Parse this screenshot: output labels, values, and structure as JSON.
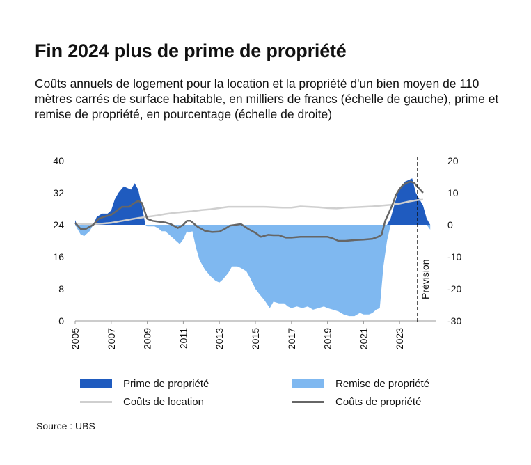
{
  "title": "Fin 2024 plus de prime de propriété",
  "subtitle": "Coûts annuels de logement pour la location et la propriété d'un bien moyen de 110 mètres carrés de surface habitable, en milliers de francs (échelle de gauche), prime et remise de propriété, en pourcentage (échelle de droite)",
  "source": "Source : UBS",
  "forecast_label": "Prévision",
  "colors": {
    "premium": "#1f5bbf",
    "discount": "#7fb8f0",
    "rent": "#cfcfcf",
    "ownership": "#666666",
    "axis": "#999999"
  },
  "legend": [
    {
      "label": "Prime de propriété",
      "kind": "area",
      "color": "#1f5bbf"
    },
    {
      "label": "Remise de propriété",
      "kind": "area",
      "color": "#7fb8f0"
    },
    {
      "label": "Coûts de location",
      "kind": "line",
      "color": "#cfcfcf"
    },
    {
      "label": "Coûts de propriété",
      "kind": "line",
      "color": "#666666"
    }
  ],
  "chart_data": {
    "type": "area",
    "xlim": [
      2005,
      2025
    ],
    "x_ticks": [
      "2005",
      "2007",
      "2009",
      "2011",
      "2013",
      "2015",
      "2017",
      "2019",
      "2021",
      "2023"
    ],
    "y_left": {
      "lim": [
        0,
        40
      ],
      "ticks": [
        "0",
        "8",
        "16",
        "24",
        "32",
        "40"
      ]
    },
    "y_right": {
      "lim": [
        -30,
        20
      ],
      "ticks": [
        "-30",
        "-20",
        "-10",
        "0",
        "10",
        "20"
      ]
    },
    "forecast_start": 2024.0,
    "series": [
      {
        "name": "Prime/Remise de propriété",
        "axis": "right",
        "x": [
          2005,
          2005.1,
          2005.3,
          2005.5,
          2005.8,
          2006.0,
          2006.2,
          2006.5,
          2006.8,
          2007.0,
          2007.2,
          2007.4,
          2007.7,
          2007.9,
          2008.1,
          2008.3,
          2008.5,
          2008.7,
          2008.9,
          2009.0,
          2009.2,
          2009.4,
          2009.6,
          2009.8,
          2010.0,
          2010.3,
          2010.6,
          2010.8,
          2011.0,
          2011.2,
          2011.3,
          2011.5,
          2011.7,
          2011.9,
          2012.2,
          2012.5,
          2012.8,
          2013.0,
          2013.2,
          2013.5,
          2013.7,
          2014.0,
          2014.2,
          2014.5,
          2014.7,
          2015.0,
          2015.2,
          2015.5,
          2015.8,
          2016.0,
          2016.3,
          2016.6,
          2016.8,
          2017.0,
          2017.3,
          2017.6,
          2017.9,
          2018.2,
          2018.5,
          2018.8,
          2019.0,
          2019.3,
          2019.6,
          2019.9,
          2020.2,
          2020.5,
          2020.8,
          2021.0,
          2021.3,
          2021.5,
          2021.7,
          2021.9,
          2022.1,
          2022.3,
          2022.5,
          2022.7,
          2022.9,
          2023.1,
          2023.3,
          2023.5,
          2023.7,
          2023.9,
          2024.1,
          2024.3,
          2024.5,
          2024.7
        ],
        "values": [
          1.5,
          -1,
          -3,
          -3.5,
          -2,
          0,
          2.5,
          3.5,
          3.5,
          4.5,
          8,
          10,
          12,
          11.5,
          11,
          13,
          11,
          6,
          0,
          -0.5,
          -0.5,
          -0.5,
          -1,
          -2,
          -2,
          -3.5,
          -5,
          -6,
          -4.5,
          -2,
          -2.5,
          -2,
          -7,
          -11,
          -14,
          -16,
          -17.5,
          -18,
          -17,
          -15,
          -13,
          -13,
          -13.5,
          -14.5,
          -16.5,
          -20,
          -21.5,
          -23.5,
          -26,
          -24,
          -24.5,
          -24.5,
          -25.5,
          -26,
          -25.5,
          -26,
          -25.5,
          -26.5,
          -26,
          -25.5,
          -26,
          -26.5,
          -27,
          -28,
          -28.5,
          -28.5,
          -27.5,
          -28,
          -28,
          -27.5,
          -26.5,
          -26,
          -13,
          -5,
          2,
          6,
          10,
          12,
          13.5,
          14,
          14.5,
          10,
          8,
          6,
          2,
          -1.5
        ]
      },
      {
        "name": "Coûts de location",
        "axis": "left",
        "x": [
          2005,
          2005.5,
          2006,
          2006.5,
          2007,
          2007.5,
          2008,
          2008.5,
          2009,
          2009.5,
          2010,
          2010.5,
          2011,
          2011.5,
          2012,
          2012.5,
          2013,
          2013.5,
          2014,
          2014.5,
          2015,
          2015.5,
          2016,
          2016.5,
          2017,
          2017.5,
          2018,
          2018.5,
          2019,
          2019.5,
          2020,
          2020.5,
          2021,
          2021.5,
          2022,
          2022.5,
          2023,
          2023.5,
          2024,
          2024.3
        ],
        "values": [
          24.3,
          24.2,
          24.2,
          24.3,
          24.5,
          24.9,
          25.3,
          25.7,
          26.0,
          26.3,
          26.7,
          27.0,
          27.2,
          27.4,
          27.7,
          27.9,
          28.2,
          28.5,
          28.5,
          28.5,
          28.5,
          28.5,
          28.4,
          28.3,
          28.3,
          28.6,
          28.5,
          28.4,
          28.2,
          28.1,
          28.3,
          28.4,
          28.5,
          28.6,
          28.8,
          29.0,
          29.3,
          29.8,
          30.2,
          30.3
        ]
      },
      {
        "name": "Coûts de propriété",
        "axis": "left",
        "x": [
          2005,
          2005.3,
          2005.6,
          2006,
          2006.3,
          2006.6,
          2007,
          2007.3,
          2007.6,
          2008,
          2008.2,
          2008.5,
          2008.7,
          2009,
          2009.3,
          2009.6,
          2010,
          2010.3,
          2010.7,
          2011,
          2011.2,
          2011.4,
          2011.8,
          2012.2,
          2012.6,
          2013,
          2013.3,
          2013.6,
          2013.9,
          2014.2,
          2014.6,
          2015,
          2015.3,
          2015.7,
          2016,
          2016.3,
          2016.7,
          2017,
          2017.5,
          2018,
          2018.5,
          2019,
          2019.3,
          2019.6,
          2020,
          2020.5,
          2021,
          2021.5,
          2021.8,
          2022,
          2022.2,
          2022.4,
          2022.6,
          2022.8,
          2023,
          2023.2,
          2023.4,
          2023.6,
          2023.8,
          2024.0,
          2024.2,
          2024.3
        ],
        "values": [
          24.5,
          23.0,
          23.0,
          24.0,
          25.5,
          26.0,
          26.5,
          27.5,
          28.5,
          28.5,
          29.2,
          30.0,
          29.5,
          25.5,
          25.0,
          24.8,
          24.6,
          24.2,
          23.2,
          24.0,
          25.0,
          25.0,
          23.5,
          22.5,
          22.2,
          22.3,
          23.0,
          23.8,
          24.0,
          24.2,
          23.0,
          22.0,
          21.0,
          21.5,
          21.4,
          21.4,
          20.8,
          20.8,
          21.0,
          21.0,
          21.0,
          21.0,
          20.6,
          20.0,
          20.0,
          20.2,
          20.3,
          20.5,
          21.0,
          21.5,
          25.0,
          27.0,
          29.0,
          31.5,
          33.0,
          34.0,
          34.5,
          34.8,
          34.5,
          33.5,
          32.5,
          32.0
        ]
      }
    ]
  }
}
